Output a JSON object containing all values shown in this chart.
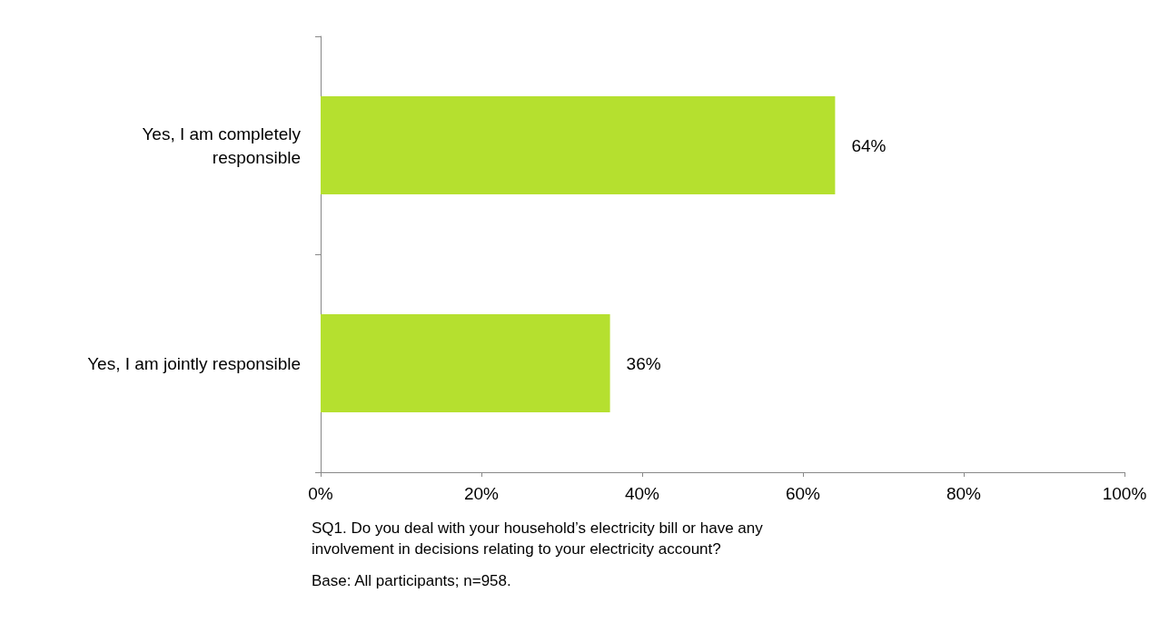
{
  "chart_data": {
    "type": "bar",
    "orientation": "horizontal",
    "categories": [
      "Yes, I am completely\nresponsible",
      "Yes, I am jointly responsible"
    ],
    "values": [
      64,
      36
    ],
    "color": "#b5e02f",
    "value_labels": [
      "64%",
      "36%"
    ],
    "xlim": [
      0,
      100
    ],
    "xticks": [
      {
        "value": 0,
        "label": "0%"
      },
      {
        "value": 20,
        "label": "20%"
      },
      {
        "value": 40,
        "label": "40%"
      },
      {
        "value": 60,
        "label": "60%"
      },
      {
        "value": 80,
        "label": "80%"
      },
      {
        "value": 100,
        "label": "100%"
      }
    ],
    "grid": false,
    "annotations": [
      "SQ1. Do you deal with your household’s electricity bill or have any involvement in decisions relating to your electricity account?",
      "Base: All participants; n=958."
    ]
  }
}
